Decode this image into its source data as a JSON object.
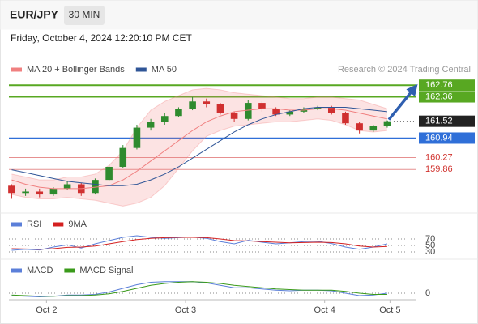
{
  "chart_data": [
    {
      "type": "candlestick",
      "title": "EUR/JPY",
      "interval": "30 MIN",
      "subtitle": "Friday, October 4, 2024 12:20:10 PM CET",
      "attribution": "Research © 2024 Trading Central",
      "x": [
        -0.25,
        -0.15,
        -0.05,
        0.05,
        0.15,
        0.25,
        0.35,
        0.45,
        0.55,
        0.65,
        0.75,
        0.85,
        0.95,
        1.05,
        1.15,
        1.25,
        1.35,
        1.45,
        1.55,
        1.65,
        1.75,
        1.85,
        1.95,
        2.05,
        2.15,
        2.25,
        2.35,
        2.45
      ],
      "xlim": [
        -0.27,
        2.66
      ],
      "xticks": [
        {
          "value": 0,
          "label": "Oct 2"
        },
        {
          "value": 1,
          "label": "Oct 3"
        },
        {
          "value": 2,
          "label": "Oct 4"
        },
        {
          "value": 2.47,
          "label": "Oct 5"
        }
      ],
      "ylim": [
        158.5,
        163.1
      ],
      "up_color": "#2e8b2e",
      "down_color": "#d03030",
      "open": [
        159.3,
        159.05,
        159.1,
        159.0,
        159.2,
        159.35,
        159.05,
        159.5,
        159.95,
        160.6,
        161.3,
        161.5,
        161.7,
        161.95,
        162.2,
        162.1,
        161.8,
        161.6,
        162.15,
        161.95,
        161.75,
        161.85,
        161.95,
        162.0,
        161.8,
        161.45,
        161.2,
        161.35
      ],
      "high": [
        159.35,
        159.2,
        159.2,
        159.25,
        159.45,
        159.4,
        159.55,
        160.0,
        160.7,
        161.4,
        161.6,
        161.8,
        162.0,
        162.35,
        162.3,
        162.15,
        161.85,
        162.25,
        162.2,
        162.0,
        161.9,
        162.0,
        162.05,
        162.05,
        161.85,
        161.5,
        161.4,
        161.55
      ],
      "low": [
        158.85,
        158.95,
        158.9,
        158.95,
        159.15,
        158.95,
        159.0,
        159.45,
        159.9,
        160.55,
        161.2,
        161.4,
        161.65,
        161.9,
        162.0,
        161.75,
        161.5,
        161.55,
        161.85,
        161.7,
        161.7,
        161.8,
        161.9,
        161.75,
        161.4,
        161.1,
        161.15,
        161.3
      ],
      "close": [
        159.05,
        159.1,
        159.0,
        159.2,
        159.35,
        159.05,
        159.5,
        159.95,
        160.6,
        161.3,
        161.5,
        161.7,
        161.95,
        162.2,
        162.1,
        161.8,
        161.6,
        162.15,
        161.95,
        161.75,
        161.85,
        161.95,
        162.0,
        161.8,
        161.45,
        161.2,
        161.35,
        161.52
      ],
      "series": [
        {
          "name": "MA 20 + Bollinger Bands",
          "color": "#f08080",
          "values": [
            159.5,
            159.35,
            159.25,
            159.2,
            159.2,
            159.2,
            159.25,
            159.3,
            159.5,
            159.8,
            160.15,
            160.5,
            160.85,
            161.2,
            161.5,
            161.7,
            161.85,
            161.9,
            161.95,
            161.95,
            161.9,
            161.9,
            161.95,
            161.95,
            161.9,
            161.8,
            161.7,
            161.6
          ],
          "upper": [
            159.7,
            159.6,
            159.5,
            159.5,
            159.6,
            159.6,
            159.7,
            160.0,
            160.5,
            161.3,
            161.9,
            162.2,
            162.4,
            162.6,
            162.65,
            162.6,
            162.5,
            162.45,
            162.4,
            162.35,
            162.3,
            162.3,
            162.35,
            162.35,
            162.3,
            162.25,
            162.1,
            161.95
          ],
          "lower": [
            159.0,
            158.9,
            158.85,
            158.85,
            158.9,
            158.85,
            158.8,
            158.7,
            158.6,
            158.7,
            158.9,
            159.3,
            159.9,
            160.5,
            161.0,
            161.2,
            161.35,
            161.4,
            161.45,
            161.5,
            161.5,
            161.55,
            161.6,
            161.55,
            161.4,
            161.2,
            161.15,
            161.2
          ]
        },
        {
          "name": "MA 50",
          "color": "#2f5597",
          "values": [
            159.85,
            159.75,
            159.65,
            159.55,
            159.45,
            159.4,
            159.35,
            159.3,
            159.3,
            159.35,
            159.5,
            159.7,
            159.95,
            160.25,
            160.55,
            160.85,
            161.15,
            161.4,
            161.6,
            161.75,
            161.85,
            161.95,
            162.0,
            162.0,
            162.0,
            161.95,
            161.9,
            161.85
          ]
        }
      ],
      "levels": [
        {
          "value": 162.76,
          "color": "#58a822",
          "style": "box",
          "line": "solid"
        },
        {
          "value": 162.36,
          "color": "#58a822",
          "style": "box",
          "line": "solid"
        },
        {
          "value": 161.52,
          "color": "#222222",
          "style": "box",
          "line": "dotted"
        },
        {
          "value": 160.94,
          "color": "#2f6fd8",
          "style": "box",
          "line": "solid"
        },
        {
          "value": 160.27,
          "color": "#d0312d",
          "style": "text",
          "line": "thin"
        },
        {
          "value": 159.86,
          "color": "#d0312d",
          "style": "text",
          "line": "thin"
        }
      ]
    },
    {
      "type": "line",
      "x": [
        -0.25,
        -0.15,
        -0.05,
        0.05,
        0.15,
        0.25,
        0.35,
        0.45,
        0.55,
        0.65,
        0.75,
        0.85,
        0.95,
        1.05,
        1.15,
        1.25,
        1.35,
        1.45,
        1.55,
        1.65,
        1.75,
        1.85,
        1.95,
        2.05,
        2.15,
        2.25,
        2.35,
        2.45
      ],
      "ylim": [
        12.5,
        87.5
      ],
      "yticks": [
        30,
        50,
        70
      ],
      "series": [
        {
          "name": "RSI",
          "color": "#5b7fd9",
          "values": [
            35,
            38,
            36,
            45,
            52,
            42,
            55,
            65,
            75,
            80,
            75,
            72,
            74,
            76,
            72,
            62,
            55,
            66,
            60,
            55,
            58,
            62,
            63,
            56,
            45,
            38,
            45,
            55
          ]
        },
        {
          "name": "9MA",
          "color": "#d42020",
          "values": [
            40,
            39,
            38,
            40,
            44,
            45,
            48,
            55,
            62,
            68,
            72,
            74,
            75,
            75,
            74,
            70,
            65,
            64,
            62,
            60,
            58,
            59,
            60,
            59,
            55,
            48,
            45,
            47
          ]
        }
      ]
    },
    {
      "type": "line",
      "x": [
        -0.25,
        -0.15,
        -0.05,
        0.05,
        0.15,
        0.25,
        0.35,
        0.45,
        0.55,
        0.65,
        0.75,
        0.85,
        0.95,
        1.05,
        1.15,
        1.25,
        1.35,
        1.45,
        1.55,
        1.65,
        1.75,
        1.85,
        1.95,
        2.05,
        2.15,
        2.25,
        2.35,
        2.45
      ],
      "ylim": [
        -0.12,
        0.28
      ],
      "yticks": [
        0
      ],
      "series": [
        {
          "name": "MACD",
          "color": "#5b7fd9",
          "values": [
            -0.04,
            -0.05,
            -0.06,
            -0.05,
            -0.03,
            -0.03,
            -0.02,
            0.02,
            0.08,
            0.14,
            0.18,
            0.19,
            0.19,
            0.19,
            0.17,
            0.13,
            0.09,
            0.09,
            0.07,
            0.05,
            0.04,
            0.05,
            0.05,
            0.04,
            0.0,
            -0.04,
            -0.03,
            0.0
          ]
        },
        {
          "name": "MACD Signal",
          "color": "#3a9a1a",
          "values": [
            -0.03,
            -0.04,
            -0.05,
            -0.05,
            -0.04,
            -0.04,
            -0.03,
            -0.01,
            0.03,
            0.08,
            0.13,
            0.16,
            0.18,
            0.19,
            0.18,
            0.16,
            0.13,
            0.11,
            0.09,
            0.07,
            0.06,
            0.05,
            0.05,
            0.05,
            0.03,
            0.0,
            -0.02,
            -0.02
          ]
        }
      ]
    }
  ]
}
